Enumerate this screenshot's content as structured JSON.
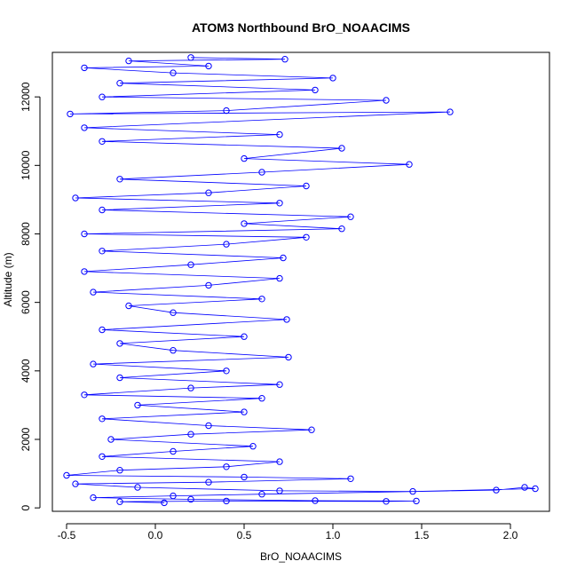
{
  "chart_data": {
    "type": "scatter",
    "title": "ATOM3 Northbound BrO_NOAACIMS",
    "xlabel": "BrO_NOAACIMS",
    "ylabel": "Altitude (m)",
    "xlim": [
      -0.58,
      2.22
    ],
    "ylim": [
      -100,
      13300
    ],
    "x_ticks": [
      -0.5,
      0.0,
      0.5,
      1.0,
      1.5,
      2.0
    ],
    "x_tick_labels": [
      "-0.5",
      "0.0",
      "0.5",
      "1.0",
      "1.5",
      "2.0"
    ],
    "y_ticks": [
      0,
      2000,
      4000,
      6000,
      8000,
      10000,
      12000
    ],
    "y_tick_labels": [
      "0",
      "2000",
      "4000",
      "6000",
      "8000",
      "10000",
      "12000"
    ],
    "grid": false,
    "legend": "none",
    "series": [
      {
        "color": "#0000ff",
        "marker": "open-circle",
        "connected": true,
        "points": [
          [
            0.05,
            150
          ],
          [
            -0.2,
            180
          ],
          [
            0.4,
            200
          ],
          [
            1.3,
            190
          ],
          [
            1.47,
            200
          ],
          [
            0.9,
            210
          ],
          [
            0.2,
            250
          ],
          [
            -0.35,
            300
          ],
          [
            0.1,
            350
          ],
          [
            0.6,
            400
          ],
          [
            1.92,
            520
          ],
          [
            2.08,
            600
          ],
          [
            2.14,
            560
          ],
          [
            1.45,
            480
          ],
          [
            0.7,
            500
          ],
          [
            -0.1,
            600
          ],
          [
            -0.45,
            700
          ],
          [
            0.3,
            750
          ],
          [
            1.1,
            850
          ],
          [
            0.5,
            900
          ],
          [
            -0.5,
            950
          ],
          [
            -0.2,
            1100
          ],
          [
            0.4,
            1200
          ],
          [
            0.7,
            1350
          ],
          [
            -0.3,
            1500
          ],
          [
            0.1,
            1650
          ],
          [
            0.55,
            1800
          ],
          [
            -0.25,
            2000
          ],
          [
            0.2,
            2150
          ],
          [
            0.88,
            2280
          ],
          [
            0.3,
            2400
          ],
          [
            -0.3,
            2600
          ],
          [
            0.5,
            2800
          ],
          [
            -0.1,
            3000
          ],
          [
            0.6,
            3200
          ],
          [
            -0.4,
            3300
          ],
          [
            0.2,
            3500
          ],
          [
            0.7,
            3600
          ],
          [
            -0.2,
            3800
          ],
          [
            0.4,
            4000
          ],
          [
            -0.35,
            4200
          ],
          [
            0.75,
            4400
          ],
          [
            0.1,
            4600
          ],
          [
            -0.2,
            4800
          ],
          [
            0.5,
            5000
          ],
          [
            -0.3,
            5200
          ],
          [
            0.74,
            5500
          ],
          [
            0.1,
            5700
          ],
          [
            -0.15,
            5900
          ],
          [
            0.6,
            6100
          ],
          [
            -0.35,
            6300
          ],
          [
            0.3,
            6500
          ],
          [
            0.7,
            6700
          ],
          [
            -0.4,
            6900
          ],
          [
            0.2,
            7100
          ],
          [
            0.72,
            7300
          ],
          [
            -0.3,
            7500
          ],
          [
            0.4,
            7700
          ],
          [
            0.85,
            7900
          ],
          [
            -0.4,
            8000
          ],
          [
            1.05,
            8150
          ],
          [
            0.5,
            8300
          ],
          [
            1.1,
            8500
          ],
          [
            -0.3,
            8700
          ],
          [
            0.7,
            8900
          ],
          [
            -0.45,
            9050
          ],
          [
            0.3,
            9200
          ],
          [
            0.85,
            9400
          ],
          [
            -0.2,
            9600
          ],
          [
            0.6,
            9800
          ],
          [
            1.43,
            10030
          ],
          [
            0.5,
            10200
          ],
          [
            1.05,
            10500
          ],
          [
            -0.3,
            10700
          ],
          [
            0.7,
            10900
          ],
          [
            -0.4,
            11100
          ],
          [
            1.66,
            11560
          ],
          [
            -0.48,
            11500
          ],
          [
            0.4,
            11600
          ],
          [
            1.3,
            11900
          ],
          [
            -0.3,
            12000
          ],
          [
            0.9,
            12200
          ],
          [
            -0.2,
            12400
          ],
          [
            1.0,
            12550
          ],
          [
            0.1,
            12700
          ],
          [
            -0.4,
            12850
          ],
          [
            0.3,
            12900
          ],
          [
            -0.15,
            13050
          ],
          [
            0.73,
            13100
          ],
          [
            0.2,
            13150
          ]
        ]
      }
    ]
  }
}
